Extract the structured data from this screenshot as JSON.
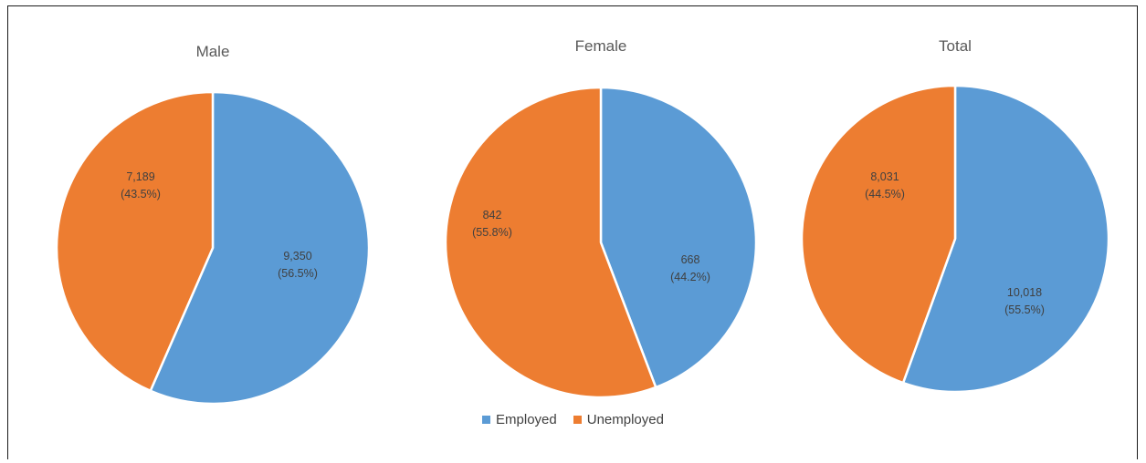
{
  "chart_data": [
    {
      "type": "pie",
      "title": "Male",
      "categories": [
        "Employed",
        "Unemployed"
      ],
      "values": [
        9350,
        7189
      ],
      "labels": [
        "9,350",
        "7,189"
      ],
      "percent_labels": [
        "(56.5%)",
        "(43.5%)"
      ]
    },
    {
      "type": "pie",
      "title": "Female",
      "categories": [
        "Employed",
        "Unemployed"
      ],
      "values": [
        668,
        842
      ],
      "labels": [
        "668",
        "842"
      ],
      "percent_labels": [
        "(44.2%)",
        "(55.8%)"
      ]
    },
    {
      "type": "pie",
      "title": "Total",
      "categories": [
        "Employed",
        "Unemployed"
      ],
      "values": [
        10018,
        8031
      ],
      "labels": [
        "10,018",
        "8,031"
      ],
      "percent_labels": [
        "(55.5%)",
        "(44.5%)"
      ]
    }
  ],
  "legend": {
    "items": [
      {
        "label": "Employed",
        "color": "#5b9bd5"
      },
      {
        "label": "Unemployed",
        "color": "#ed7d31"
      }
    ],
    "placement": "bottom"
  },
  "colors": {
    "employed": "#5b9bd5",
    "unemployed": "#ed7d31",
    "slice_border": "#ffffff"
  }
}
